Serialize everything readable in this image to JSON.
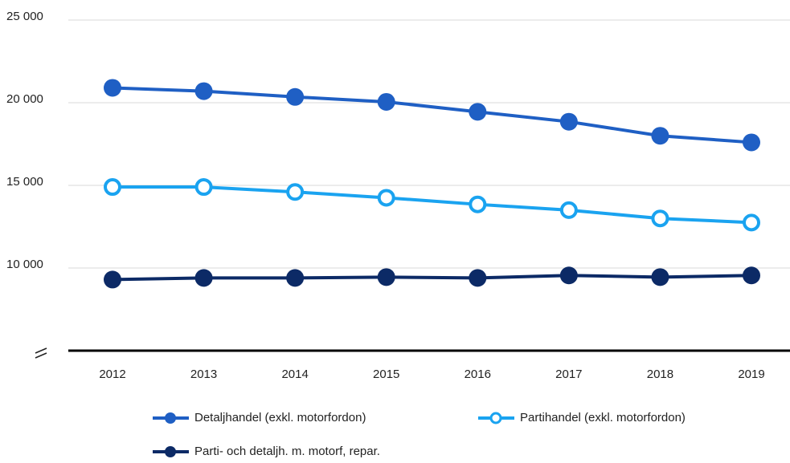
{
  "chart_data": {
    "type": "line",
    "categories": [
      "2012",
      "2013",
      "2014",
      "2015",
      "2016",
      "2017",
      "2018",
      "2019"
    ],
    "series": [
      {
        "name": "Detaljhandel (exkl. motorfordon)",
        "color": "#1f5fc4",
        "hollow": false,
        "values": [
          20900,
          20700,
          20350,
          20050,
          19450,
          18850,
          18000,
          17600
        ]
      },
      {
        "name": "Partihandel (exkl. motorfordon)",
        "color": "#1aa3f0",
        "hollow": true,
        "values": [
          14900,
          14900,
          14600,
          14250,
          13850,
          13500,
          13000,
          12750
        ]
      },
      {
        "name": "Parti- och detaljh. m. motorf, repar.",
        "color": "#0c2a66",
        "hollow": false,
        "values": [
          9300,
          9400,
          9400,
          9450,
          9400,
          9550,
          9450,
          9550
        ]
      }
    ],
    "ylim": [
      5000,
      25000
    ],
    "yticks": [
      {
        "value": 10000,
        "label": "10 000"
      },
      {
        "value": 15000,
        "label": "15 000"
      },
      {
        "value": 20000,
        "label": "20 000"
      },
      {
        "value": 25000,
        "label": "25 000"
      }
    ],
    "grid": true
  }
}
